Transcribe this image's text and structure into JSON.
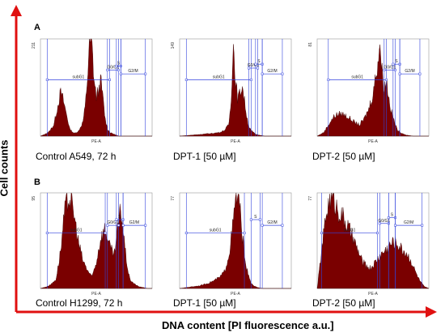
{
  "figure": {
    "ylabel": "Cell counts",
    "xlabel": "DNA content [PI fluorescence a.u.]",
    "colors": {
      "histogram": "#7a0000",
      "gate": "#3344dd",
      "axis_arrow": "#e01010"
    }
  },
  "chart_data": [
    {
      "type": "area",
      "row": "A",
      "caption": "Control A549, 72 h",
      "ymax_label": "211",
      "xlabel": "PE-A",
      "gates": [
        "subG1",
        "G0/G1",
        "S",
        "G2/M"
      ],
      "x": [
        0,
        4,
        8,
        12,
        16,
        18,
        20,
        22,
        24,
        26,
        30,
        34,
        38,
        40,
        42,
        44,
        46,
        48,
        50,
        52,
        54,
        56,
        58,
        60,
        62,
        64,
        66,
        68,
        70,
        74,
        78,
        82,
        86,
        90,
        94,
        100
      ],
      "y": [
        0,
        2,
        5,
        12,
        35,
        46,
        40,
        30,
        20,
        8,
        3,
        5,
        15,
        30,
        60,
        100,
        98,
        60,
        42,
        48,
        60,
        40,
        18,
        8,
        4,
        3,
        2,
        1,
        0,
        0,
        0,
        0,
        0,
        0,
        0,
        0
      ]
    },
    {
      "type": "area",
      "caption": "DPT-1 [50 µM]",
      "ymax_label": "149",
      "xlabel": "PE-A",
      "gates": [
        "subG1",
        "G0/G1",
        "S",
        "G2/M"
      ],
      "x": [
        0,
        10,
        20,
        30,
        36,
        40,
        44,
        46,
        48,
        50,
        52,
        54,
        56,
        58,
        60,
        62,
        64,
        66,
        68,
        72,
        76,
        80,
        90,
        100
      ],
      "y": [
        0,
        1,
        2,
        3,
        4,
        6,
        12,
        35,
        100,
        60,
        40,
        45,
        55,
        38,
        22,
        10,
        6,
        4,
        2,
        1,
        0,
        0,
        0,
        0
      ]
    },
    {
      "type": "area",
      "caption": "DPT-2 [50 µM]",
      "ymax_label": "81",
      "xlabel": "PE-A",
      "gates": [
        "subG1",
        "G0/G1",
        "S",
        "G2/M"
      ],
      "x": [
        0,
        6,
        10,
        16,
        22,
        28,
        34,
        38,
        42,
        46,
        50,
        54,
        56,
        58,
        60,
        62,
        64,
        66,
        68,
        70,
        72,
        76,
        80,
        86,
        92,
        100
      ],
      "y": [
        0,
        4,
        12,
        22,
        24,
        20,
        14,
        12,
        18,
        28,
        45,
        75,
        100,
        70,
        50,
        60,
        42,
        28,
        20,
        12,
        6,
        3,
        1,
        0,
        0,
        0
      ]
    },
    {
      "type": "area",
      "row": "B",
      "caption": "Control H1299, 72 h",
      "ymax_label": "95",
      "xlabel": "PE-A",
      "gates": [
        "subG1",
        "G0/G1",
        "S",
        "G2/M"
      ],
      "x": [
        0,
        6,
        10,
        14,
        18,
        22,
        26,
        30,
        34,
        38,
        42,
        46,
        50,
        54,
        58,
        62,
        66,
        70,
        72,
        74,
        76,
        78,
        80,
        84,
        88,
        92,
        96,
        100
      ],
      "y": [
        0,
        2,
        5,
        10,
        40,
        85,
        100,
        80,
        50,
        30,
        20,
        12,
        28,
        55,
        65,
        45,
        35,
        72,
        85,
        65,
        40,
        22,
        10,
        5,
        2,
        1,
        0,
        0
      ]
    },
    {
      "type": "area",
      "caption": "DPT-1 [50 µM]",
      "ymax_label": "77",
      "xlabel": "PE-A",
      "gates": [
        "subG1",
        "S",
        "G2/M"
      ],
      "x": [
        0,
        6,
        12,
        18,
        24,
        30,
        36,
        40,
        44,
        48,
        50,
        52,
        54,
        56,
        58,
        60,
        62,
        64,
        66,
        70,
        74,
        80,
        90,
        100
      ],
      "y": [
        0,
        1,
        2,
        3,
        5,
        8,
        12,
        18,
        35,
        70,
        95,
        100,
        85,
        60,
        38,
        22,
        12,
        6,
        3,
        1,
        0,
        0,
        0,
        0
      ]
    },
    {
      "type": "area",
      "caption": "DPT-2 [50 µM]",
      "ymax_label": "77",
      "xlabel": "PE-A",
      "gates": [
        "subG1",
        "G0/G1",
        "S",
        "G2/M"
      ],
      "x": [
        0,
        4,
        8,
        12,
        16,
        20,
        24,
        30,
        36,
        40,
        44,
        48,
        52,
        56,
        60,
        64,
        68,
        72,
        76,
        80,
        84,
        88,
        92,
        96,
        100
      ],
      "y": [
        0,
        40,
        80,
        100,
        92,
        82,
        75,
        60,
        42,
        30,
        24,
        22,
        28,
        35,
        40,
        45,
        50,
        48,
        42,
        38,
        30,
        18,
        8,
        2,
        0
      ]
    }
  ]
}
